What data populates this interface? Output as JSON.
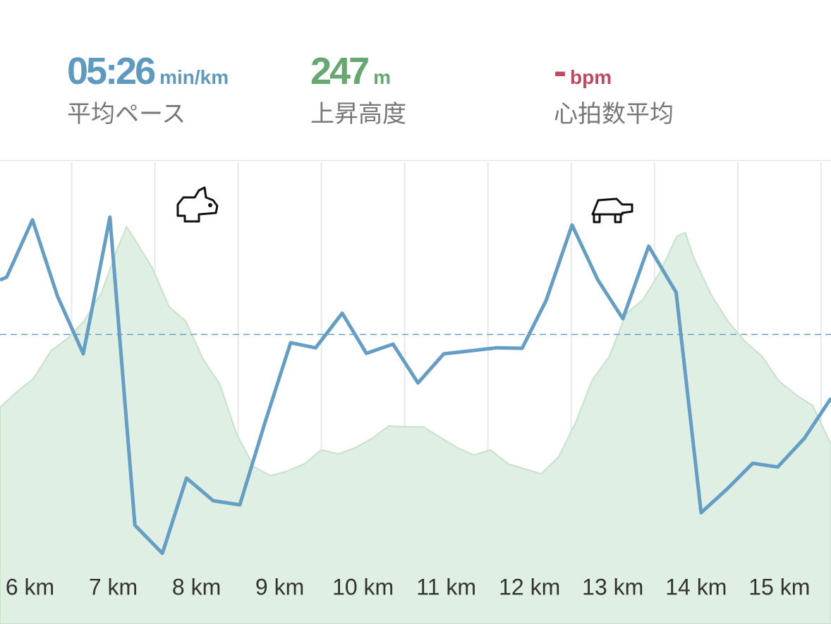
{
  "stats": [
    {
      "value": "05:26",
      "unit": "min/km",
      "label": "平均ペース",
      "color": "#5e9ac0"
    },
    {
      "value": "247",
      "unit": "m",
      "label": "上昇高度",
      "color": "#66a86f"
    },
    {
      "value": "-",
      "unit": "bpm",
      "label": "心拍数平均",
      "color": "#c04a5c"
    }
  ],
  "chart_data": {
    "type": "line",
    "xlim": [
      5.64,
      15.62
    ],
    "ylim": [
      0,
      100
    ],
    "xticks": [
      {
        "value": 6,
        "label": "6 km"
      },
      {
        "value": 7,
        "label": "7 km"
      },
      {
        "value": 8,
        "label": "8 km"
      },
      {
        "value": 9,
        "label": "9 km"
      },
      {
        "value": 10,
        "label": "10 km"
      },
      {
        "value": 11,
        "label": "11 km"
      },
      {
        "value": 12,
        "label": "12 km"
      },
      {
        "value": 13,
        "label": "13 km"
      },
      {
        "value": 14,
        "label": "14 km"
      },
      {
        "value": 15,
        "label": "15 km"
      }
    ],
    "grid_x": [
      6.5,
      7.5,
      8.5,
      9.5,
      10.5,
      11.5,
      12.5,
      13.5,
      14.5,
      15.5
    ],
    "reference_line": 62.7,
    "series": [
      {
        "kind": "area",
        "color": "#c6e2cb",
        "fill": "#e0efe3",
        "x": [
          5.64,
          5.84,
          6.04,
          6.25,
          6.45,
          6.65,
          6.86,
          7.06,
          7.16,
          7.26,
          7.47,
          7.67,
          7.87,
          8.08,
          8.28,
          8.48,
          8.69,
          8.89,
          9.09,
          9.3,
          9.5,
          9.7,
          9.91,
          10.11,
          10.31,
          10.52,
          10.72,
          10.92,
          11.13,
          11.33,
          11.53,
          11.74,
          11.94,
          12.14,
          12.35,
          12.55,
          12.75,
          12.96,
          13.16,
          13.36,
          13.57,
          13.77,
          13.87,
          13.97,
          14.18,
          14.38,
          14.59,
          14.79,
          14.99,
          15.2,
          15.4,
          15.62
        ],
        "values": [
          46.9,
          50.2,
          53.1,
          59.1,
          61.8,
          65.6,
          71.8,
          81.7,
          86.0,
          83.2,
          77.1,
          68.7,
          65.6,
          57.3,
          51.9,
          41.2,
          34.0,
          32.1,
          33.1,
          34.7,
          37.7,
          36.8,
          38.2,
          40.2,
          42.9,
          42.7,
          42.7,
          40.5,
          38.2,
          36.6,
          37.7,
          34.7,
          33.6,
          32.5,
          36.2,
          43.5,
          52.7,
          58.0,
          67.2,
          70.2,
          76.3,
          84.0,
          84.7,
          79.4,
          71.3,
          65.6,
          61.1,
          58.0,
          52.7,
          49.6,
          47.3,
          38.9
        ]
      },
      {
        "kind": "line",
        "color": "#649ec4",
        "x": [
          5.64,
          5.72,
          6.03,
          6.33,
          6.64,
          6.96,
          7.26,
          7.59,
          7.88,
          8.2,
          8.52,
          8.82,
          9.13,
          9.43,
          9.75,
          10.04,
          10.36,
          10.66,
          10.97,
          11.27,
          11.6,
          11.91,
          12.2,
          12.51,
          12.82,
          13.12,
          13.43,
          13.76,
          14.06,
          14.37,
          14.68,
          14.98,
          15.3,
          15.62
        ],
        "values": [
          74.5,
          75.1,
          87.5,
          71.0,
          58.5,
          88.1,
          21.4,
          15.3,
          31.6,
          26.7,
          25.8,
          43.5,
          60.9,
          59.8,
          67.3,
          58.6,
          60.6,
          52.2,
          58.5,
          59.1,
          59.8,
          59.7,
          70.1,
          86.4,
          74.5,
          66.1,
          81.8,
          71.8,
          24.1,
          29.2,
          34.8,
          34.0,
          40.2,
          48.9
        ]
      }
    ]
  }
}
